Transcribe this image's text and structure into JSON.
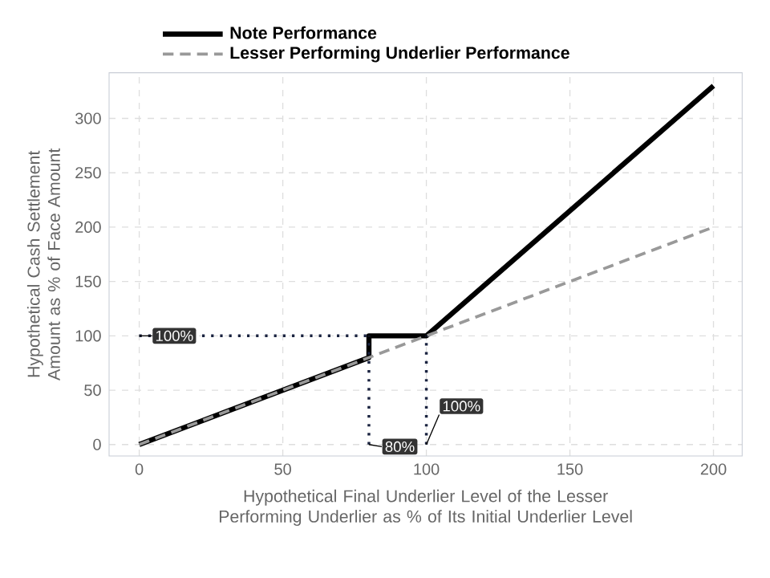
{
  "chart_data": {
    "type": "line",
    "xlabel": "Hypothetical Final Underlier Level of the Lesser Performing Underlier as % of Its Initial Underlier Level",
    "ylabel": "Hypothetical Cash Settlement Amount as % of Face Amount",
    "xlim": [
      -10.5,
      210
    ],
    "ylim": [
      -10.5,
      342
    ],
    "xticks": [
      0,
      50,
      100,
      150,
      200
    ],
    "yticks": [
      0,
      50,
      100,
      150,
      200,
      250,
      300
    ],
    "grid": true,
    "legend": "top",
    "marker": "none",
    "series": [
      {
        "name": "Note Performance",
        "color": "#000000",
        "line_style": "solid",
        "x": [
          0,
          80,
          80,
          100,
          200
        ],
        "values": [
          0,
          80,
          100,
          100,
          330
        ]
      },
      {
        "name": "Lesser Performing Underlier Performance",
        "color": "#999999",
        "line_style": "dashed",
        "x": [
          0,
          200
        ],
        "values": [
          0,
          200
        ]
      },
      {
        "color": "#1a2340",
        "line_style": "dotted",
        "x": [
          0,
          80
        ],
        "values": [
          100,
          100
        ]
      },
      {
        "color": "#1a2340",
        "line_style": "dotted",
        "x": [
          80,
          80
        ],
        "values": [
          0,
          100
        ]
      },
      {
        "color": "#1a2340",
        "line_style": "dotted",
        "x": [
          100,
          100
        ],
        "values": [
          0,
          100
        ]
      }
    ],
    "annotations": [
      {
        "text": "100%",
        "x": 0,
        "y": 100
      },
      {
        "text": "80%",
        "x": 80,
        "y": 0
      },
      {
        "text": "100%",
        "x": 100,
        "y": 0
      }
    ]
  }
}
